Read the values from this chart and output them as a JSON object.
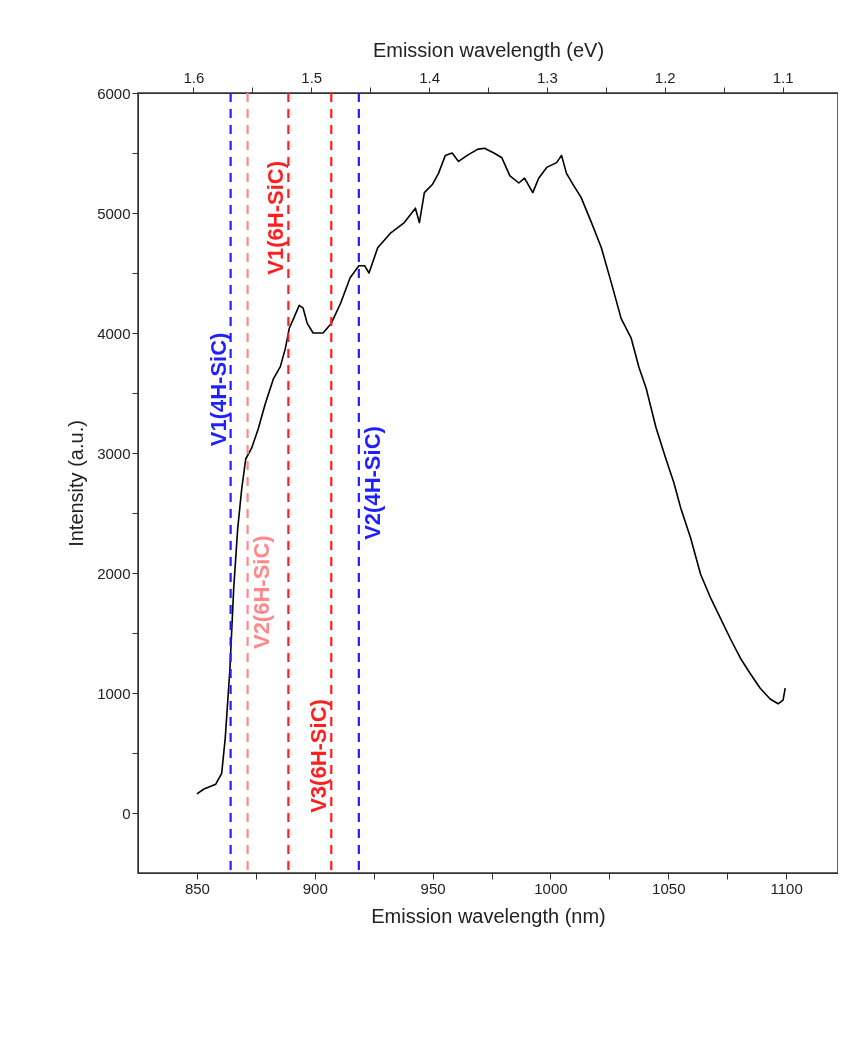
{
  "chart_data": {
    "type": "line",
    "xlabel": "Emission wavelength (nm)",
    "x2label": "Emission wavelength (eV)",
    "ylabel": "Intensity (a.u.)",
    "xlim": [
      825,
      1122
    ],
    "xticks": [
      850,
      {
        "value": 875,
        "label": null
      },
      900,
      {
        "value": 925,
        "label": null
      },
      950,
      {
        "value": 975,
        "label": null
      },
      1000,
      {
        "value": 1025,
        "label": null
      },
      1050,
      {
        "value": 1075,
        "label": null
      },
      1100
    ],
    "x2lim": [
      1.647,
      1.053
    ],
    "x2ticks": [
      1.6,
      {
        "value": 1.55,
        "label": null
      },
      1.5,
      {
        "value": 1.45,
        "label": null
      },
      1.4,
      {
        "value": 1.35,
        "label": null
      },
      1.3,
      {
        "value": 1.25,
        "label": null
      },
      1.2,
      {
        "value": 1.15,
        "label": null
      },
      1.1
    ],
    "ylim": [
      -500,
      6000
    ],
    "yticks": [
      0,
      {
        "value": 500,
        "label": null
      },
      1000,
      {
        "value": 1500,
        "label": null
      },
      2000,
      {
        "value": 2500,
        "label": null
      },
      3000,
      {
        "value": 3500,
        "label": null
      },
      4000,
      {
        "value": 4500,
        "label": null
      },
      5000,
      {
        "value": 5500,
        "label": null
      },
      6000
    ],
    "grid": false,
    "marker": "none",
    "line_style": "solid",
    "series": [
      {
        "color": "#000000",
        "x": [
          850,
          853,
          858,
          860.5,
          862,
          864,
          865.6,
          867.3,
          869,
          870.7,
          873.2,
          876,
          879,
          882.5,
          885.4,
          887.5,
          889.2,
          891,
          893.4,
          895,
          896.8,
          899.3,
          903.5,
          907,
          911,
          915,
          918.7,
          921.2,
          923,
          926.7,
          932,
          938,
          942.7,
          944.4,
          946.5,
          950,
          952.5,
          955.4,
          958.3,
          961,
          964.7,
          969,
          972,
          976,
          979.4,
          982.8,
          986.6,
          989,
          992.5,
          995,
          998.4,
          1002.6,
          1004.7,
          1006.8,
          1009.8,
          1013,
          1017.4,
          1021.6,
          1025.8,
          1030,
          1034.2,
          1037.6,
          1040.6,
          1044.8,
          1049,
          1052.4,
          1055.3,
          1059.5,
          1063.7,
          1068,
          1072.2,
          1076.4,
          1080.6,
          1084.8,
          1089,
          1093.2,
          1096.6,
          1098.7,
          1099.6
        ],
        "values": [
          160,
          200,
          240,
          330,
          620,
          1200,
          1870,
          2370,
          2700,
          2950,
          3040,
          3200,
          3410,
          3620,
          3720,
          3870,
          4040,
          4120,
          4230,
          4210,
          4080,
          4000,
          4000,
          4080,
          4250,
          4460,
          4560,
          4560,
          4500,
          4710,
          4830,
          4920,
          5040,
          4920,
          5170,
          5240,
          5330,
          5480,
          5500,
          5430,
          5480,
          5530,
          5540,
          5500,
          5460,
          5310,
          5250,
          5290,
          5170,
          5290,
          5380,
          5420,
          5480,
          5330,
          5230,
          5130,
          4920,
          4710,
          4420,
          4120,
          3960,
          3710,
          3540,
          3210,
          2950,
          2750,
          2540,
          2290,
          1990,
          1790,
          1620,
          1450,
          1290,
          1160,
          1040,
          950,
          910,
          940,
          1040
        ]
      }
    ],
    "ref_lines": [
      {
        "axis": "x",
        "value": 864.3,
        "label": "V1(4H-SiC)",
        "color": "#1f1fff",
        "line_style": "dashed"
      },
      {
        "axis": "x",
        "value": 871.5,
        "label": "V2(6H-SiC)",
        "color": "#ff8888",
        "line_style": "dashed"
      },
      {
        "axis": "x",
        "value": 888.8,
        "label": "V1(6H-SiC)",
        "color": "#ff1f1f",
        "line_style": "dashed"
      },
      {
        "axis": "x",
        "value": 907,
        "label": "V3(6H-SiC)",
        "color": "#ff1f1f",
        "line_style": "dashed"
      },
      {
        "axis": "x",
        "value": 918.7,
        "label": "V2(4H-SiC)",
        "color": "#1f1fff",
        "line_style": "dashed"
      }
    ]
  }
}
